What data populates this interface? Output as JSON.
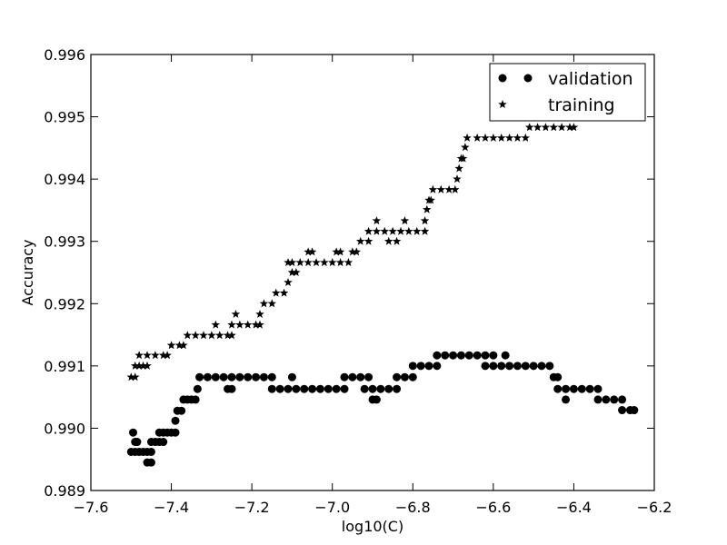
{
  "chart_data": {
    "type": "scatter",
    "title": "",
    "xlabel": "log10(C)",
    "ylabel": "Accuracy",
    "xlim": [
      -7.6,
      -6.2
    ],
    "ylim": [
      0.989,
      0.996
    ],
    "x_ticks": [
      "−7.6",
      "−7.4",
      "−7.2",
      "−7.0",
      "−6.8",
      "−6.6",
      "−6.4",
      "−6.2"
    ],
    "y_ticks": [
      "0.989",
      "0.990",
      "0.991",
      "0.992",
      "0.993",
      "0.994",
      "0.995",
      "0.996"
    ],
    "grid": false,
    "legend_position": "top-right",
    "series": [
      {
        "name": "validation",
        "marker": "circle",
        "color": "#000000",
        "points": [
          [
            -7.5,
            0.98962
          ],
          [
            -7.49,
            0.98962
          ],
          [
            -7.48,
            0.98962
          ],
          [
            -7.47,
            0.98962
          ],
          [
            -7.46,
            0.98962
          ],
          [
            -7.45,
            0.98962
          ],
          [
            -7.495,
            0.98993
          ],
          [
            -7.49,
            0.98978
          ],
          [
            -7.485,
            0.98978
          ],
          [
            -7.46,
            0.98945
          ],
          [
            -7.45,
            0.98945
          ],
          [
            -7.45,
            0.98978
          ],
          [
            -7.44,
            0.98978
          ],
          [
            -7.43,
            0.98978
          ],
          [
            -7.42,
            0.98978
          ],
          [
            -7.43,
            0.98993
          ],
          [
            -7.42,
            0.98993
          ],
          [
            -7.41,
            0.98993
          ],
          [
            -7.4,
            0.98993
          ],
          [
            -7.39,
            0.98993
          ],
          [
            -7.39,
            0.99012
          ],
          [
            -7.385,
            0.99028
          ],
          [
            -7.375,
            0.99028
          ],
          [
            -7.37,
            0.99046
          ],
          [
            -7.36,
            0.99046
          ],
          [
            -7.35,
            0.99046
          ],
          [
            -7.34,
            0.99046
          ],
          [
            -7.335,
            0.99063
          ],
          [
            -7.33,
            0.99082
          ],
          [
            -7.31,
            0.99082
          ],
          [
            -7.29,
            0.99082
          ],
          [
            -7.27,
            0.99082
          ],
          [
            -7.25,
            0.99082
          ],
          [
            -7.23,
            0.99082
          ],
          [
            -7.21,
            0.99082
          ],
          [
            -7.19,
            0.99082
          ],
          [
            -7.17,
            0.99082
          ],
          [
            -7.15,
            0.99082
          ],
          [
            -7.26,
            0.99063
          ],
          [
            -7.25,
            0.99063
          ],
          [
            -7.15,
            0.99063
          ],
          [
            -7.13,
            0.99063
          ],
          [
            -7.11,
            0.99063
          ],
          [
            -7.09,
            0.99063
          ],
          [
            -7.07,
            0.99063
          ],
          [
            -7.05,
            0.99063
          ],
          [
            -7.03,
            0.99063
          ],
          [
            -7.01,
            0.99063
          ],
          [
            -6.99,
            0.99063
          ],
          [
            -6.97,
            0.99063
          ],
          [
            -7.1,
            0.99082
          ],
          [
            -6.97,
            0.99082
          ],
          [
            -6.95,
            0.99082
          ],
          [
            -6.93,
            0.99082
          ],
          [
            -6.91,
            0.99082
          ],
          [
            -6.92,
            0.99063
          ],
          [
            -6.9,
            0.99063
          ],
          [
            -6.88,
            0.99063
          ],
          [
            -6.86,
            0.99063
          ],
          [
            -6.84,
            0.99063
          ],
          [
            -6.9,
            0.99046
          ],
          [
            -6.89,
            0.99046
          ],
          [
            -6.84,
            0.99082
          ],
          [
            -6.82,
            0.99082
          ],
          [
            -6.8,
            0.99082
          ],
          [
            -6.8,
            0.991
          ],
          [
            -6.78,
            0.991
          ],
          [
            -6.76,
            0.991
          ],
          [
            -6.74,
            0.991
          ],
          [
            -6.74,
            0.99117
          ],
          [
            -6.72,
            0.99117
          ],
          [
            -6.7,
            0.99117
          ],
          [
            -6.68,
            0.99117
          ],
          [
            -6.66,
            0.99117
          ],
          [
            -6.64,
            0.99117
          ],
          [
            -6.62,
            0.99117
          ],
          [
            -6.6,
            0.99117
          ],
          [
            -6.62,
            0.991
          ],
          [
            -6.6,
            0.991
          ],
          [
            -6.58,
            0.991
          ],
          [
            -6.56,
            0.991
          ],
          [
            -6.54,
            0.991
          ],
          [
            -6.52,
            0.991
          ],
          [
            -6.5,
            0.991
          ],
          [
            -6.48,
            0.991
          ],
          [
            -6.46,
            0.991
          ],
          [
            -6.57,
            0.99117
          ],
          [
            -6.45,
            0.99082
          ],
          [
            -6.44,
            0.99082
          ],
          [
            -6.44,
            0.99063
          ],
          [
            -6.42,
            0.99063
          ],
          [
            -6.4,
            0.99063
          ],
          [
            -6.38,
            0.99063
          ],
          [
            -6.36,
            0.99063
          ],
          [
            -6.34,
            0.99063
          ],
          [
            -6.42,
            0.99046
          ],
          [
            -6.34,
            0.99046
          ],
          [
            -6.32,
            0.99046
          ],
          [
            -6.3,
            0.99046
          ],
          [
            -6.28,
            0.99046
          ],
          [
            -6.28,
            0.99029
          ],
          [
            -6.26,
            0.99029
          ],
          [
            -6.25,
            0.99029
          ]
        ]
      },
      {
        "name": "training",
        "marker": "star",
        "color": "#000000",
        "points": [
          [
            -7.5,
            0.99082
          ],
          [
            -7.49,
            0.99082
          ],
          [
            -7.49,
            0.991
          ],
          [
            -7.48,
            0.991
          ],
          [
            -7.47,
            0.991
          ],
          [
            -7.46,
            0.991
          ],
          [
            -7.48,
            0.99117
          ],
          [
            -7.46,
            0.99117
          ],
          [
            -7.44,
            0.99117
          ],
          [
            -7.42,
            0.99117
          ],
          [
            -7.41,
            0.99117
          ],
          [
            -7.4,
            0.99133
          ],
          [
            -7.38,
            0.99133
          ],
          [
            -7.37,
            0.99133
          ],
          [
            -7.36,
            0.99149
          ],
          [
            -7.34,
            0.99149
          ],
          [
            -7.32,
            0.99149
          ],
          [
            -7.3,
            0.99149
          ],
          [
            -7.28,
            0.99149
          ],
          [
            -7.26,
            0.99149
          ],
          [
            -7.25,
            0.99149
          ],
          [
            -7.29,
            0.99166
          ],
          [
            -7.25,
            0.99166
          ],
          [
            -7.23,
            0.99166
          ],
          [
            -7.21,
            0.99166
          ],
          [
            -7.19,
            0.99166
          ],
          [
            -7.18,
            0.99166
          ],
          [
            -7.24,
            0.99183
          ],
          [
            -7.18,
            0.99183
          ],
          [
            -7.17,
            0.992
          ],
          [
            -7.15,
            0.992
          ],
          [
            -7.14,
            0.99217
          ],
          [
            -7.12,
            0.99217
          ],
          [
            -7.11,
            0.99234
          ],
          [
            -7.1,
            0.9925
          ],
          [
            -7.09,
            0.9925
          ],
          [
            -7.11,
            0.99266
          ],
          [
            -7.1,
            0.99266
          ],
          [
            -7.08,
            0.99266
          ],
          [
            -7.06,
            0.99266
          ],
          [
            -7.04,
            0.99266
          ],
          [
            -7.02,
            0.99266
          ],
          [
            -7.0,
            0.99266
          ],
          [
            -6.98,
            0.99266
          ],
          [
            -6.96,
            0.99266
          ],
          [
            -7.06,
            0.99283
          ],
          [
            -7.05,
            0.99283
          ],
          [
            -6.99,
            0.99283
          ],
          [
            -6.98,
            0.99283
          ],
          [
            -6.95,
            0.99283
          ],
          [
            -6.94,
            0.99283
          ],
          [
            -6.93,
            0.993
          ],
          [
            -6.91,
            0.993
          ],
          [
            -6.91,
            0.99316
          ],
          [
            -6.89,
            0.99316
          ],
          [
            -6.87,
            0.99316
          ],
          [
            -6.85,
            0.99316
          ],
          [
            -6.89,
            0.99333
          ],
          [
            -6.86,
            0.993
          ],
          [
            -6.84,
            0.993
          ],
          [
            -6.83,
            0.99316
          ],
          [
            -6.82,
            0.99333
          ],
          [
            -6.81,
            0.99316
          ],
          [
            -6.79,
            0.99316
          ],
          [
            -6.77,
            0.99316
          ],
          [
            -6.77,
            0.99333
          ],
          [
            -6.765,
            0.99351
          ],
          [
            -6.76,
            0.99366
          ],
          [
            -6.755,
            0.99366
          ],
          [
            -6.75,
            0.99383
          ],
          [
            -6.73,
            0.99383
          ],
          [
            -6.71,
            0.99383
          ],
          [
            -6.695,
            0.99383
          ],
          [
            -6.69,
            0.994
          ],
          [
            -6.685,
            0.99417
          ],
          [
            -6.68,
            0.99433
          ],
          [
            -6.675,
            0.99433
          ],
          [
            -6.67,
            0.99451
          ],
          [
            -6.665,
            0.99466
          ],
          [
            -6.64,
            0.99466
          ],
          [
            -6.62,
            0.99466
          ],
          [
            -6.6,
            0.99466
          ],
          [
            -6.58,
            0.99466
          ],
          [
            -6.56,
            0.99466
          ],
          [
            -6.54,
            0.99466
          ],
          [
            -6.52,
            0.99466
          ],
          [
            -6.51,
            0.99483
          ],
          [
            -6.49,
            0.99483
          ],
          [
            -6.47,
            0.99483
          ],
          [
            -6.45,
            0.99483
          ],
          [
            -6.43,
            0.99483
          ],
          [
            -6.41,
            0.99483
          ],
          [
            -6.4,
            0.99483
          ]
        ]
      }
    ]
  }
}
